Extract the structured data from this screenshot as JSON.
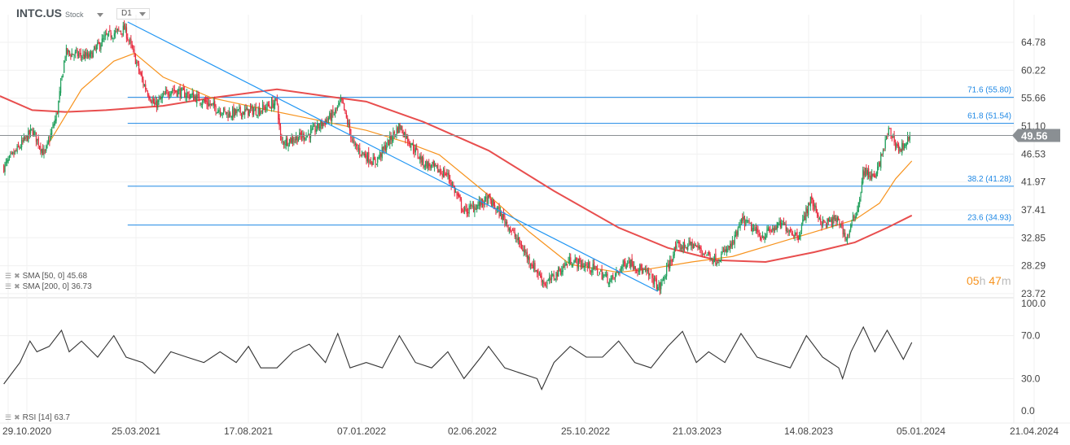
{
  "header": {
    "symbol": "INTC.US",
    "type": "Stock",
    "timeframe": "D1"
  },
  "indicators": [
    {
      "label": "SMA [50, 0] 45.68",
      "color": "#f7931e"
    },
    {
      "label": "SMA [200, 0] 36.73",
      "color": "#e84e4e"
    },
    {
      "label": "RSI [14] 63.7",
      "color": "#333333"
    }
  ],
  "countdown": {
    "hours": "05",
    "h": "h",
    "minutes": "47",
    "m": "m"
  },
  "colors": {
    "up": "#1e9e5a",
    "down": "#e8283c",
    "trend": "#2196f3",
    "fib": "#1e88e5"
  },
  "chart_data": {
    "type": "candlestick",
    "symbol": "INTC.US",
    "day_zero": "29.10.2020",
    "x_ticks": [
      "29.10.2020",
      "25.03.2021",
      "17.08.2021",
      "07.01.2022",
      "02.06.2022",
      "25.10.2022",
      "21.03.2023",
      "14.08.2023",
      "05.01.2024",
      "21.04.2024"
    ],
    "price_ticks": [
      "64.78",
      "60.22",
      "55.66",
      "51.10",
      "46.53",
      "41.97",
      "37.41",
      "32.85",
      "28.29",
      "23.72"
    ],
    "price_range": [
      23.72,
      64.78
    ],
    "last_price": "49.56",
    "close_path": [
      [
        -30,
        44.4
      ],
      [
        7,
        50.4
      ],
      [
        23,
        46.4
      ],
      [
        39,
        53.1
      ],
      [
        50,
        63.1
      ],
      [
        81,
        62.4
      ],
      [
        103,
        65.7
      ],
      [
        127,
        67.0
      ],
      [
        140,
        62.4
      ],
      [
        150,
        58.4
      ],
      [
        166,
        54.4
      ],
      [
        187,
        57.1
      ],
      [
        219,
        55.8
      ],
      [
        261,
        53.1
      ],
      [
        304,
        53.8
      ],
      [
        325,
        55.1
      ],
      [
        330,
        48.4
      ],
      [
        367,
        49.8
      ],
      [
        399,
        53.1
      ],
      [
        409,
        55.1
      ],
      [
        425,
        47.8
      ],
      [
        452,
        45.1
      ],
      [
        484,
        51.1
      ],
      [
        515,
        45.1
      ],
      [
        547,
        43.1
      ],
      [
        568,
        37.1
      ],
      [
        600,
        39.1
      ],
      [
        621,
        35.8
      ],
      [
        653,
        29.2
      ],
      [
        674,
        25.2
      ],
      [
        706,
        29.2
      ],
      [
        737,
        27.8
      ],
      [
        759,
        25.8
      ],
      [
        780,
        29.2
      ],
      [
        811,
        26.5
      ],
      [
        822,
        24.5
      ],
      [
        843,
        31.2
      ],
      [
        864,
        31.8
      ],
      [
        896,
        29.2
      ],
      [
        917,
        31.8
      ],
      [
        930,
        35.8
      ],
      [
        954,
        33.1
      ],
      [
        981,
        35.1
      ],
      [
        1002,
        33.1
      ],
      [
        1018,
        39.1
      ],
      [
        1034,
        35.1
      ],
      [
        1055,
        35.8
      ],
      [
        1065,
        32.5
      ],
      [
        1081,
        38.5
      ],
      [
        1087,
        43.8
      ],
      [
        1102,
        42.5
      ],
      [
        1120,
        50.4
      ],
      [
        1134,
        47.1
      ],
      [
        1148,
        49.56
      ]
    ],
    "sma50": [
      [
        29,
        48.4
      ],
      [
        71,
        57.1
      ],
      [
        113,
        61.7
      ],
      [
        140,
        63.0
      ],
      [
        177,
        59.1
      ],
      [
        240,
        55.7
      ],
      [
        314,
        53.7
      ],
      [
        388,
        51.8
      ],
      [
        441,
        50.4
      ],
      [
        494,
        48.4
      ],
      [
        536,
        46.4
      ],
      [
        600,
        39.8
      ],
      [
        653,
        33.8
      ],
      [
        706,
        28.5
      ],
      [
        769,
        27.2
      ],
      [
        811,
        27.8
      ],
      [
        864,
        28.9
      ],
      [
        917,
        29.8
      ],
      [
        970,
        31.8
      ],
      [
        1023,
        33.8
      ],
      [
        1076,
        35.8
      ],
      [
        1108,
        38.5
      ],
      [
        1129,
        42.5
      ],
      [
        1150,
        45.4
      ]
    ],
    "sma200": [
      [
        -35,
        56.0
      ],
      [
        7,
        53.7
      ],
      [
        50,
        53.4
      ],
      [
        103,
        53.7
      ],
      [
        177,
        54.4
      ],
      [
        240,
        55.7
      ],
      [
        325,
        57.1
      ],
      [
        388,
        56.0
      ],
      [
        441,
        55.1
      ],
      [
        515,
        51.8
      ],
      [
        600,
        47.1
      ],
      [
        685,
        40.5
      ],
      [
        769,
        34.5
      ],
      [
        833,
        31.2
      ],
      [
        896,
        29.2
      ],
      [
        960,
        28.9
      ],
      [
        1023,
        30.5
      ],
      [
        1076,
        32.1
      ],
      [
        1118,
        34.5
      ],
      [
        1150,
        36.5
      ]
    ],
    "trendline": [
      [
        131,
        68.1
      ],
      [
        820,
        24.1
      ]
    ],
    "fib_levels": [
      {
        "label": "71.6 (55.80)",
        "price": 55.8
      },
      {
        "label": "61.8 (51.54)",
        "price": 51.54
      },
      {
        "label": "38.2 (41.28)",
        "price": 41.28
      },
      {
        "label": "23.6 (34.93)",
        "price": 34.93
      }
    ],
    "fib_start_day": 131,
    "rsi": {
      "ticks": [
        "100.0",
        "70.0",
        "30.0",
        "0.0"
      ],
      "range": [
        0,
        100
      ],
      "values": [
        [
          -30,
          25
        ],
        [
          -9,
          45
        ],
        [
          4,
          65
        ],
        [
          13,
          55
        ],
        [
          29,
          60
        ],
        [
          45,
          75
        ],
        [
          55,
          55
        ],
        [
          71,
          65
        ],
        [
          92,
          50
        ],
        [
          113,
          70
        ],
        [
          129,
          50
        ],
        [
          150,
          45
        ],
        [
          166,
          35
        ],
        [
          187,
          55
        ],
        [
          208,
          50
        ],
        [
          230,
          45
        ],
        [
          251,
          55
        ],
        [
          272,
          45
        ],
        [
          288,
          60
        ],
        [
          304,
          40
        ],
        [
          325,
          40
        ],
        [
          346,
          55
        ],
        [
          367,
          62
        ],
        [
          388,
          45
        ],
        [
          404,
          72
        ],
        [
          420,
          40
        ],
        [
          441,
          45
        ],
        [
          462,
          40
        ],
        [
          484,
          70
        ],
        [
          505,
          45
        ],
        [
          526,
          40
        ],
        [
          547,
          55
        ],
        [
          568,
          30
        ],
        [
          590,
          50
        ],
        [
          600,
          60
        ],
        [
          621,
          40
        ],
        [
          642,
          35
        ],
        [
          663,
          30
        ],
        [
          669,
          20
        ],
        [
          685,
          45
        ],
        [
          706,
          60
        ],
        [
          727,
          50
        ],
        [
          748,
          50
        ],
        [
          769,
          65
        ],
        [
          790,
          45
        ],
        [
          811,
          40
        ],
        [
          833,
          60
        ],
        [
          852,
          74
        ],
        [
          870,
          45
        ],
        [
          886,
          55
        ],
        [
          907,
          45
        ],
        [
          928,
          72
        ],
        [
          949,
          50
        ],
        [
          970,
          45
        ],
        [
          992,
          40
        ],
        [
          1013,
          70
        ],
        [
          1034,
          50
        ],
        [
          1055,
          40
        ],
        [
          1060,
          30
        ],
        [
          1071,
          55
        ],
        [
          1087,
          78
        ],
        [
          1102,
          55
        ],
        [
          1118,
          75
        ],
        [
          1139,
          48
        ],
        [
          1150,
          63.7
        ]
      ]
    }
  }
}
